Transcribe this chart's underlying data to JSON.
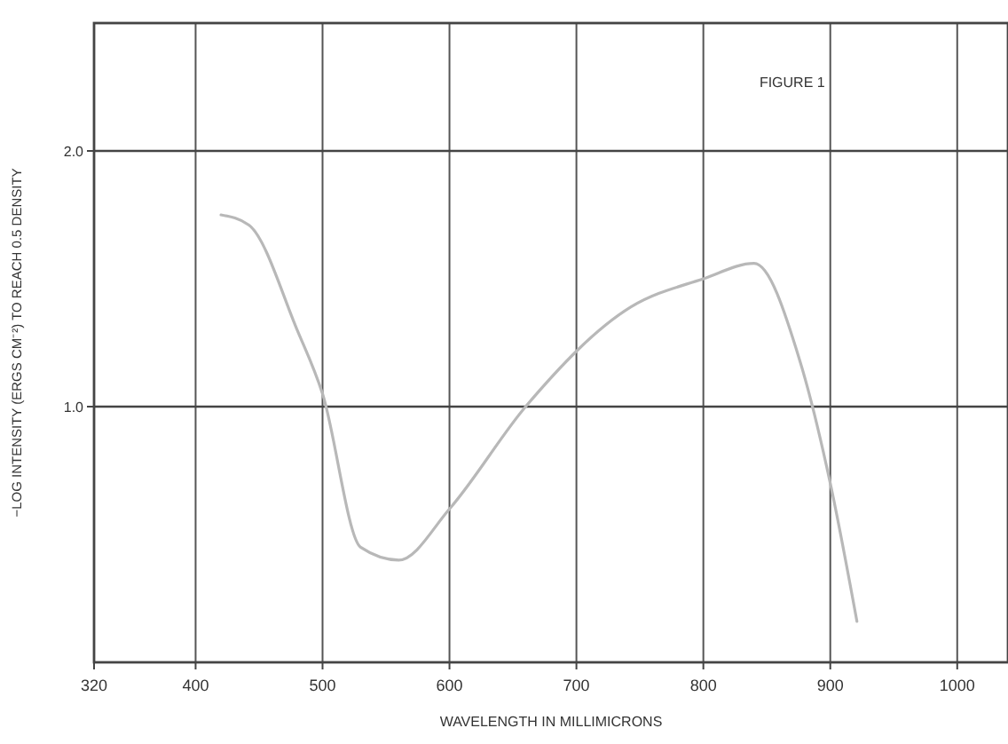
{
  "chart_data": {
    "type": "line",
    "title": "FIGURE 1",
    "xlabel": "WAVELENGTH IN MILLIMICRONS",
    "ylabel": "−LOG INTENSITY (ERGS CM⁻²) TO REACH 0.5 DENSITY",
    "x": [
      420,
      442,
      480,
      500,
      530,
      560,
      600,
      660,
      743,
      800,
      840,
      876,
      900,
      921
    ],
    "series": [
      {
        "color": "#b8b8b8",
        "values": [
          1.75,
          1.71,
          1.3,
          1.05,
          0.45,
          0.4,
          0.6,
          1.0,
          1.39,
          1.5,
          1.56,
          1.18,
          0.7,
          0.16
        ]
      }
    ],
    "xlim": [
      320,
      1040
    ],
    "xticks": [
      320,
      400,
      500,
      600,
      700,
      800,
      900,
      1000
    ],
    "ylim": [
      0,
      2.5
    ],
    "yticks": [
      {
        "value": 1,
        "label": "1.0"
      },
      {
        "value": 2,
        "label": "2.0"
      }
    ],
    "grid": true,
    "marker": "none",
    "line_style": "solid"
  }
}
